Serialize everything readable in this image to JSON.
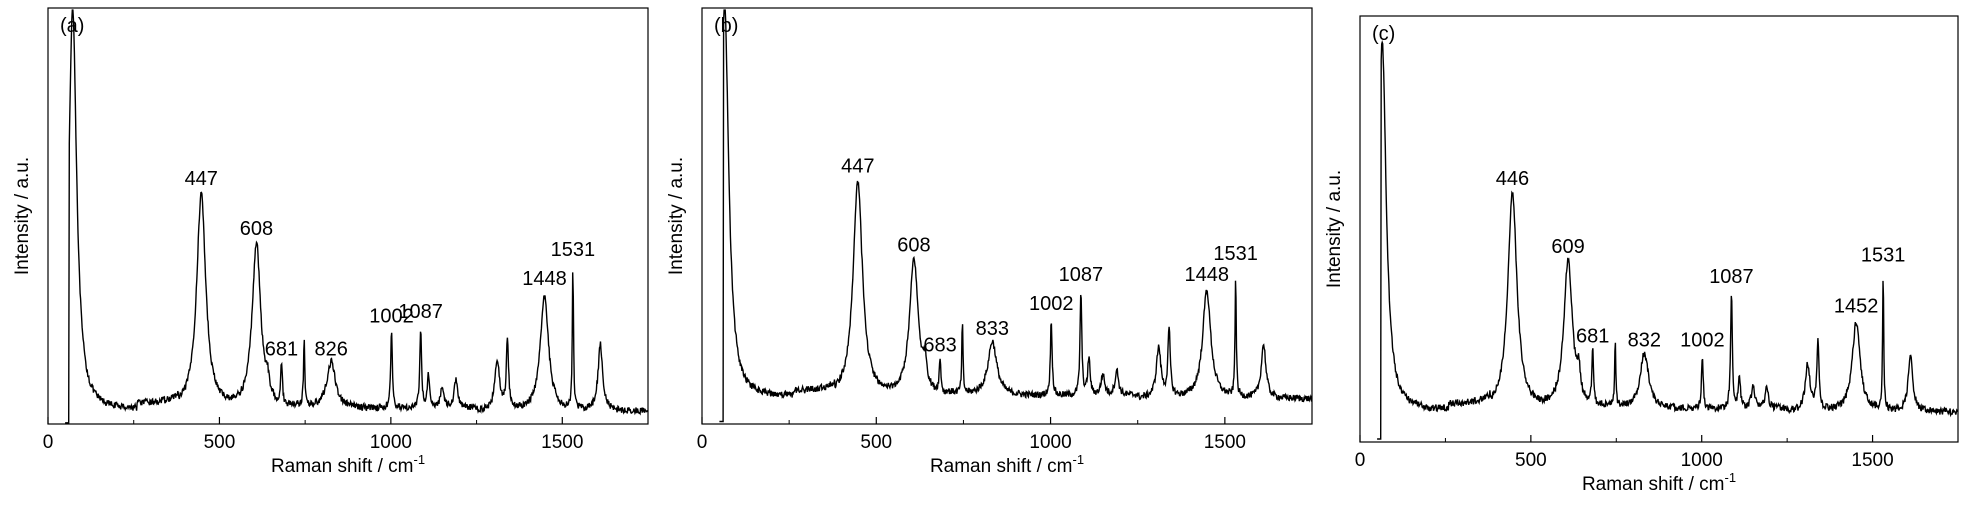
{
  "chart_data": [
    {
      "type": "line",
      "panel_label": "(a)",
      "xlabel": "Raman shift / cm",
      "xlabel_sup": "-1",
      "ylabel": "Intensity / a.u.",
      "xlim": [
        0,
        1750
      ],
      "xticks": [
        "0",
        "500",
        "1000",
        "1500"
      ],
      "ylim": [
        0,
        1
      ],
      "baseline": 0.03,
      "peaks": [
        {
          "x": 72,
          "h": 0.97,
          "w": 14
        },
        {
          "x": 447,
          "h": 0.52,
          "w": 16,
          "label": "447"
        },
        {
          "x": 608,
          "h": 0.4,
          "w": 15,
          "label": "608"
        },
        {
          "x": 640,
          "h": 0.04,
          "w": 6
        },
        {
          "x": 681,
          "h": 0.1,
          "w": 3,
          "label": "681"
        },
        {
          "x": 747,
          "h": 0.17,
          "w": 2
        },
        {
          "x": 826,
          "h": 0.11,
          "w": 15,
          "label": "826"
        },
        {
          "x": 1002,
          "h": 0.18,
          "w": 3,
          "label": "1002"
        },
        {
          "x": 1087,
          "h": 0.19,
          "w": 3,
          "label": "1087"
        },
        {
          "x": 1110,
          "h": 0.08,
          "w": 4
        },
        {
          "x": 1150,
          "h": 0.05,
          "w": 6
        },
        {
          "x": 1190,
          "h": 0.07,
          "w": 6
        },
        {
          "x": 1310,
          "h": 0.12,
          "w": 8
        },
        {
          "x": 1340,
          "h": 0.16,
          "w": 4
        },
        {
          "x": 1448,
          "h": 0.28,
          "w": 14,
          "label": "1448"
        },
        {
          "x": 1531,
          "h": 0.34,
          "w": 2,
          "label": "1531"
        },
        {
          "x": 1611,
          "h": 0.16,
          "w": 8
        }
      ]
    },
    {
      "type": "line",
      "panel_label": "(b)",
      "xlabel": "Raman shift / cm",
      "xlabel_sup": "-1",
      "ylabel": "Intensity / a.u.",
      "xlim": [
        0,
        1750
      ],
      "xticks": [
        "0",
        "500",
        "1000",
        "1500"
      ],
      "ylim": [
        0,
        1
      ],
      "baseline": 0.06,
      "peaks": [
        {
          "x": 65,
          "h": 0.95,
          "w": 14
        },
        {
          "x": 447,
          "h": 0.52,
          "w": 16,
          "label": "447"
        },
        {
          "x": 608,
          "h": 0.33,
          "w": 15,
          "label": "608"
        },
        {
          "x": 640,
          "h": 0.06,
          "w": 6
        },
        {
          "x": 683,
          "h": 0.08,
          "w": 3,
          "label": "683"
        },
        {
          "x": 747,
          "h": 0.17,
          "w": 2
        },
        {
          "x": 833,
          "h": 0.13,
          "w": 15,
          "label": "833"
        },
        {
          "x": 1002,
          "h": 0.18,
          "w": 3,
          "label": "1002"
        },
        {
          "x": 1087,
          "h": 0.25,
          "w": 3,
          "label": "1087"
        },
        {
          "x": 1110,
          "h": 0.09,
          "w": 4
        },
        {
          "x": 1150,
          "h": 0.05,
          "w": 6
        },
        {
          "x": 1190,
          "h": 0.06,
          "w": 6
        },
        {
          "x": 1310,
          "h": 0.12,
          "w": 8
        },
        {
          "x": 1340,
          "h": 0.16,
          "w": 4
        },
        {
          "x": 1448,
          "h": 0.26,
          "w": 14,
          "label": "1448"
        },
        {
          "x": 1531,
          "h": 0.3,
          "w": 2,
          "label": "1531"
        },
        {
          "x": 1611,
          "h": 0.13,
          "w": 8
        }
      ]
    },
    {
      "type": "line",
      "panel_label": "(c)",
      "xlabel": "Raman shift / cm",
      "xlabel_sup": "-1",
      "ylabel": "Intensity / a.u.",
      "xlim": [
        0,
        1750
      ],
      "xticks": [
        "0",
        "500",
        "1000",
        "1500"
      ],
      "ylim": [
        0,
        1
      ],
      "baseline": 0.07,
      "peaks": [
        {
          "x": 65,
          "h": 0.87,
          "w": 14
        },
        {
          "x": 446,
          "h": 0.51,
          "w": 16,
          "label": "446"
        },
        {
          "x": 609,
          "h": 0.35,
          "w": 15,
          "label": "609"
        },
        {
          "x": 640,
          "h": 0.06,
          "w": 6
        },
        {
          "x": 681,
          "h": 0.13,
          "w": 3,
          "label": "681"
        },
        {
          "x": 747,
          "h": 0.16,
          "w": 2
        },
        {
          "x": 832,
          "h": 0.13,
          "w": 15,
          "label": "832"
        },
        {
          "x": 1002,
          "h": 0.12,
          "w": 3,
          "label": "1002"
        },
        {
          "x": 1087,
          "h": 0.27,
          "w": 3,
          "label": "1087"
        },
        {
          "x": 1110,
          "h": 0.07,
          "w": 4
        },
        {
          "x": 1150,
          "h": 0.05,
          "w": 6
        },
        {
          "x": 1190,
          "h": 0.05,
          "w": 6
        },
        {
          "x": 1310,
          "h": 0.11,
          "w": 8
        },
        {
          "x": 1340,
          "h": 0.16,
          "w": 4
        },
        {
          "x": 1452,
          "h": 0.21,
          "w": 14,
          "label": "1452"
        },
        {
          "x": 1531,
          "h": 0.32,
          "w": 2,
          "label": "1531"
        },
        {
          "x": 1611,
          "h": 0.13,
          "w": 8
        }
      ]
    }
  ]
}
